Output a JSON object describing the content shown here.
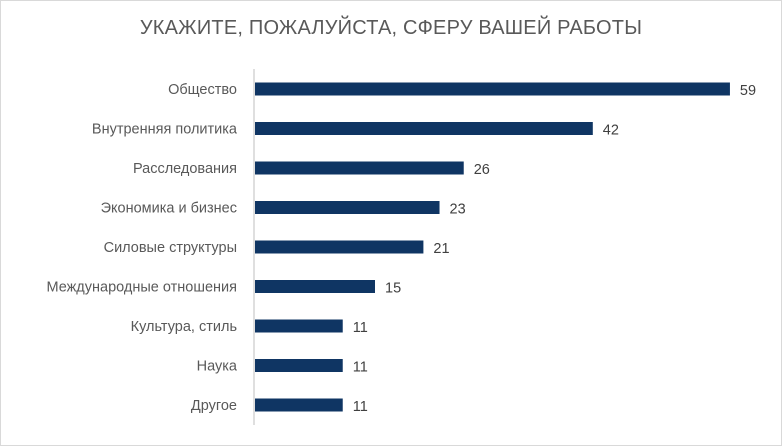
{
  "chart_data": {
    "type": "bar",
    "orientation": "horizontal",
    "title": "УКАЖИТЕ, ПОЖАЛУЙСТА, СФЕРУ ВАШЕЙ РАБОТЫ",
    "categories": [
      "Общество",
      "Внутренняя политика",
      "Расследования",
      "Экономика и бизнес",
      "Силовые структуры",
      "Международные отношения",
      "Культура, стиль",
      "Наука",
      "Другое"
    ],
    "values": [
      59,
      42,
      26,
      23,
      21,
      15,
      11,
      11,
      11
    ],
    "xlim": [
      0,
      60
    ],
    "grid": false,
    "legend": "none",
    "data_labels": true,
    "bar_color": "#0f3563"
  }
}
